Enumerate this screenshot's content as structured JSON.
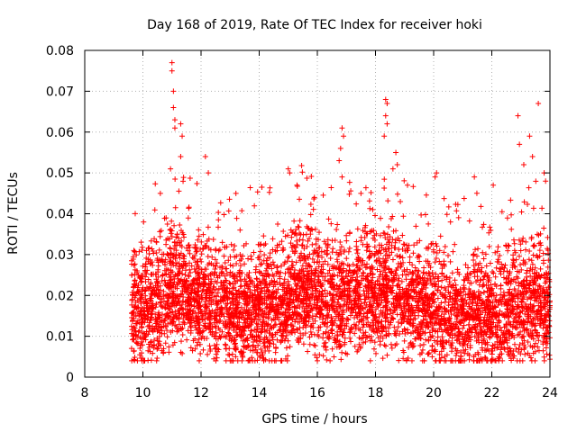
{
  "chart_data": {
    "type": "scatter",
    "title": "Day 168 of 2019, Rate Of TEC Index for receiver hoki",
    "xlabel": "GPS time / hours",
    "ylabel": "ROTI / TECUs",
    "xlim": [
      8,
      24
    ],
    "ylim": [
      0,
      0.08
    ],
    "xticks": [
      8,
      10,
      12,
      14,
      16,
      18,
      20,
      22,
      24
    ],
    "yticks": [
      0,
      0.01,
      0.02,
      0.03,
      0.04,
      0.05,
      0.06,
      0.07,
      0.08
    ],
    "ytick_labels": [
      "0",
      "0.01",
      "0.02",
      "0.03",
      "0.04",
      "0.05",
      "0.06",
      "0.07",
      "0.08"
    ],
    "grid": true,
    "marker": "+",
    "color": "#ff0000",
    "data_start_hour": 9.6,
    "data_end_hour": 24.0,
    "profile": [
      [
        9.6,
        0.014
      ],
      [
        10.0,
        0.016
      ],
      [
        10.5,
        0.017
      ],
      [
        11.0,
        0.021
      ],
      [
        11.5,
        0.02
      ],
      [
        12.0,
        0.018
      ],
      [
        12.5,
        0.016
      ],
      [
        13.0,
        0.015
      ],
      [
        13.5,
        0.014
      ],
      [
        14.0,
        0.015
      ],
      [
        14.5,
        0.016
      ],
      [
        15.0,
        0.018
      ],
      [
        15.5,
        0.02
      ],
      [
        16.0,
        0.018
      ],
      [
        16.5,
        0.015
      ],
      [
        17.0,
        0.018
      ],
      [
        17.5,
        0.019
      ],
      [
        18.0,
        0.018
      ],
      [
        18.5,
        0.019
      ],
      [
        19.0,
        0.017
      ],
      [
        19.5,
        0.016
      ],
      [
        20.0,
        0.015
      ],
      [
        20.5,
        0.013
      ],
      [
        21.0,
        0.013
      ],
      [
        21.5,
        0.014
      ],
      [
        22.0,
        0.014
      ],
      [
        22.5,
        0.015
      ],
      [
        23.0,
        0.016
      ],
      [
        23.5,
        0.017
      ],
      [
        24.0,
        0.017
      ]
    ],
    "peaks": [
      {
        "x": 11.0,
        "y": 0.077
      },
      {
        "x": 11.0,
        "y": 0.075
      },
      {
        "x": 11.05,
        "y": 0.07
      },
      {
        "x": 11.05,
        "y": 0.066
      },
      {
        "x": 11.1,
        "y": 0.063
      },
      {
        "x": 11.1,
        "y": 0.061
      },
      {
        "x": 11.3,
        "y": 0.062
      },
      {
        "x": 11.35,
        "y": 0.059
      },
      {
        "x": 11.3,
        "y": 0.054
      },
      {
        "x": 10.95,
        "y": 0.051
      },
      {
        "x": 12.15,
        "y": 0.054
      },
      {
        "x": 12.25,
        "y": 0.05
      },
      {
        "x": 15.0,
        "y": 0.051
      },
      {
        "x": 15.05,
        "y": 0.05
      },
      {
        "x": 15.3,
        "y": 0.047
      },
      {
        "x": 16.85,
        "y": 0.061
      },
      {
        "x": 16.9,
        "y": 0.059
      },
      {
        "x": 16.8,
        "y": 0.056
      },
      {
        "x": 16.75,
        "y": 0.053
      },
      {
        "x": 16.85,
        "y": 0.049
      },
      {
        "x": 18.35,
        "y": 0.068
      },
      {
        "x": 18.4,
        "y": 0.067
      },
      {
        "x": 18.35,
        "y": 0.064
      },
      {
        "x": 18.4,
        "y": 0.062
      },
      {
        "x": 18.3,
        "y": 0.059
      },
      {
        "x": 18.7,
        "y": 0.055
      },
      {
        "x": 18.75,
        "y": 0.052
      },
      {
        "x": 18.6,
        "y": 0.051
      },
      {
        "x": 20.1,
        "y": 0.05
      },
      {
        "x": 20.05,
        "y": 0.049
      },
      {
        "x": 21.4,
        "y": 0.049
      },
      {
        "x": 22.9,
        "y": 0.064
      },
      {
        "x": 22.95,
        "y": 0.057
      },
      {
        "x": 23.6,
        "y": 0.067
      },
      {
        "x": 23.3,
        "y": 0.059
      },
      {
        "x": 23.1,
        "y": 0.052
      },
      {
        "x": 23.4,
        "y": 0.054
      },
      {
        "x": 23.8,
        "y": 0.05
      },
      {
        "x": 23.85,
        "y": 0.048
      },
      {
        "x": 22.05,
        "y": 0.047
      },
      {
        "x": 17.5,
        "y": 0.045
      },
      {
        "x": 13.2,
        "y": 0.045
      },
      {
        "x": 10.6,
        "y": 0.045
      },
      {
        "x": 19.1,
        "y": 0.047
      },
      {
        "x": 15.9,
        "y": 0.044
      }
    ],
    "point_count": 5200,
    "random_seed": 168
  }
}
